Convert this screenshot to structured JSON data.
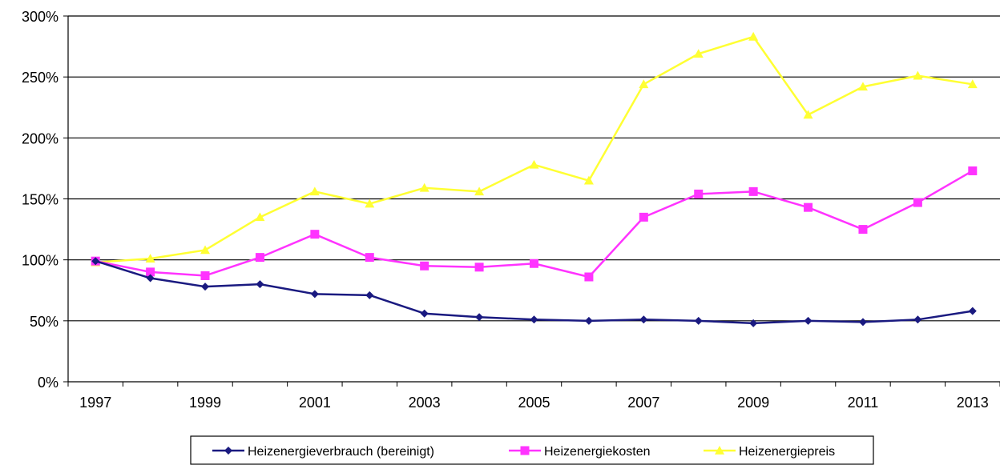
{
  "chart_data": {
    "type": "line",
    "title": "",
    "xlabel": "",
    "ylabel": "",
    "x": [
      1997,
      1998,
      1999,
      2000,
      2001,
      2002,
      2003,
      2004,
      2005,
      2006,
      2007,
      2008,
      2009,
      2010,
      2011,
      2012,
      2013
    ],
    "x_tick_labels": [
      "1997",
      "1999",
      "2001",
      "2003",
      "2005",
      "2007",
      "2009",
      "2011",
      "2013"
    ],
    "y_tick_labels": [
      "0%",
      "50%",
      "100%",
      "150%",
      "200%",
      "250%",
      "300%"
    ],
    "ylim": [
      0,
      300
    ],
    "y_unit": "%",
    "grid": "horizontal",
    "legend_position": "bottom",
    "series": [
      {
        "name": "Heizenergieverbrauch (bereinigt)",
        "color": "#1a1a80",
        "marker": "diamond",
        "values": [
          99,
          85,
          78,
          80,
          72,
          71,
          56,
          53,
          51,
          50,
          51,
          50,
          48,
          50,
          49,
          51,
          58
        ]
      },
      {
        "name": "Heizenergiekosten",
        "color": "#ff33ff",
        "marker": "square",
        "values": [
          99,
          90,
          87,
          102,
          121,
          102,
          95,
          94,
          97,
          86,
          135,
          154,
          156,
          143,
          125,
          147,
          173
        ]
      },
      {
        "name": "Heizenergiepreis",
        "color": "#ffff33",
        "marker": "triangle",
        "values": [
          98,
          101,
          108,
          135,
          156,
          146,
          159,
          156,
          178,
          165,
          244,
          269,
          283,
          219,
          242,
          251,
          244
        ]
      }
    ]
  }
}
